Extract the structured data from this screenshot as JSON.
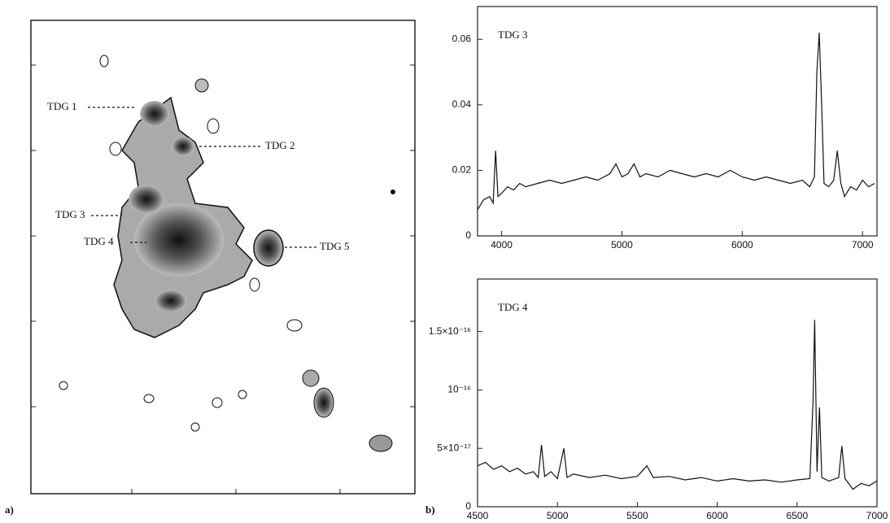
{
  "panel_a": {
    "label": "a)",
    "annotations": [
      "TDG 1",
      "TDG 2",
      "TDG 3",
      "TDG 4",
      "TDG 5"
    ]
  },
  "panel_b": {
    "label": "b)"
  },
  "chart_data": [
    {
      "type": "line",
      "title": "TDG 3",
      "color": "#111111",
      "grid": false,
      "xlim": [
        3800,
        7120
      ],
      "xticks": [
        4000,
        5000,
        6000,
        7000
      ],
      "ylim": [
        0,
        0.07
      ],
      "yticks": [
        0,
        0.02,
        0.04,
        0.06
      ],
      "x": [
        3800,
        3850,
        3900,
        3930,
        3950,
        3970,
        4000,
        4050,
        4100,
        4150,
        4200,
        4300,
        4400,
        4500,
        4600,
        4700,
        4800,
        4900,
        4950,
        5000,
        5050,
        5100,
        5150,
        5200,
        5300,
        5400,
        5500,
        5600,
        5700,
        5800,
        5900,
        6000,
        6100,
        6200,
        6300,
        6400,
        6500,
        6560,
        6600,
        6620,
        6640,
        6660,
        6680,
        6720,
        6760,
        6790,
        6820,
        6850,
        6900,
        6950,
        7000,
        7050,
        7100
      ],
      "values": [
        0.008,
        0.011,
        0.012,
        0.01,
        0.026,
        0.012,
        0.013,
        0.015,
        0.014,
        0.016,
        0.015,
        0.016,
        0.017,
        0.016,
        0.017,
        0.018,
        0.017,
        0.019,
        0.022,
        0.018,
        0.019,
        0.022,
        0.018,
        0.019,
        0.018,
        0.02,
        0.019,
        0.018,
        0.019,
        0.018,
        0.02,
        0.018,
        0.017,
        0.018,
        0.017,
        0.016,
        0.017,
        0.015,
        0.018,
        0.05,
        0.062,
        0.04,
        0.016,
        0.015,
        0.017,
        0.026,
        0.016,
        0.012,
        0.015,
        0.014,
        0.017,
        0.015,
        0.016
      ]
    },
    {
      "type": "line",
      "title": "TDG 4",
      "color": "#111111",
      "grid": false,
      "xlim": [
        4500,
        7000
      ],
      "xticks": [
        4500,
        5000,
        5500,
        6000,
        6500,
        7000
      ],
      "ylim": [
        0,
        1.95e-16
      ],
      "yticks": [
        0,
        {
          "value": 5e-17,
          "label": "5×10⁻¹⁷"
        },
        {
          "value": 1e-16,
          "label": "10⁻¹⁶"
        },
        {
          "value": 1.5e-16,
          "label": "1.5×10⁻¹⁶"
        }
      ],
      "x": [
        4500,
        4550,
        4600,
        4650,
        4700,
        4750,
        4800,
        4850,
        4880,
        4900,
        4920,
        4960,
        5000,
        5040,
        5060,
        5100,
        5200,
        5300,
        5400,
        5500,
        5560,
        5600,
        5700,
        5800,
        5900,
        6000,
        6100,
        6200,
        6300,
        6400,
        6500,
        6580,
        6600,
        6610,
        6625,
        6640,
        6655,
        6700,
        6760,
        6780,
        6800,
        6850,
        6900,
        6950,
        7000
      ],
      "values": [
        3.5e-17,
        3.8e-17,
        3.2e-17,
        3.5e-17,
        3e-17,
        3.3e-17,
        2.8e-17,
        3e-17,
        2.5e-17,
        5.3e-17,
        2.6e-17,
        3e-17,
        2.4e-17,
        5e-17,
        2.5e-17,
        2.8e-17,
        2.5e-17,
        2.7e-17,
        2.4e-17,
        2.6e-17,
        3.5e-17,
        2.5e-17,
        2.6e-17,
        2.3e-17,
        2.5e-17,
        2.2e-17,
        2.4e-17,
        2.2e-17,
        2.3e-17,
        2.1e-17,
        2.3e-17,
        2.4e-17,
        9e-17,
        1.6e-16,
        3e-17,
        8.5e-17,
        2.5e-17,
        2.2e-17,
        2.5e-17,
        5.2e-17,
        2.4e-17,
        1.5e-17,
        2e-17,
        1.8e-17,
        2.2e-17
      ]
    }
  ]
}
